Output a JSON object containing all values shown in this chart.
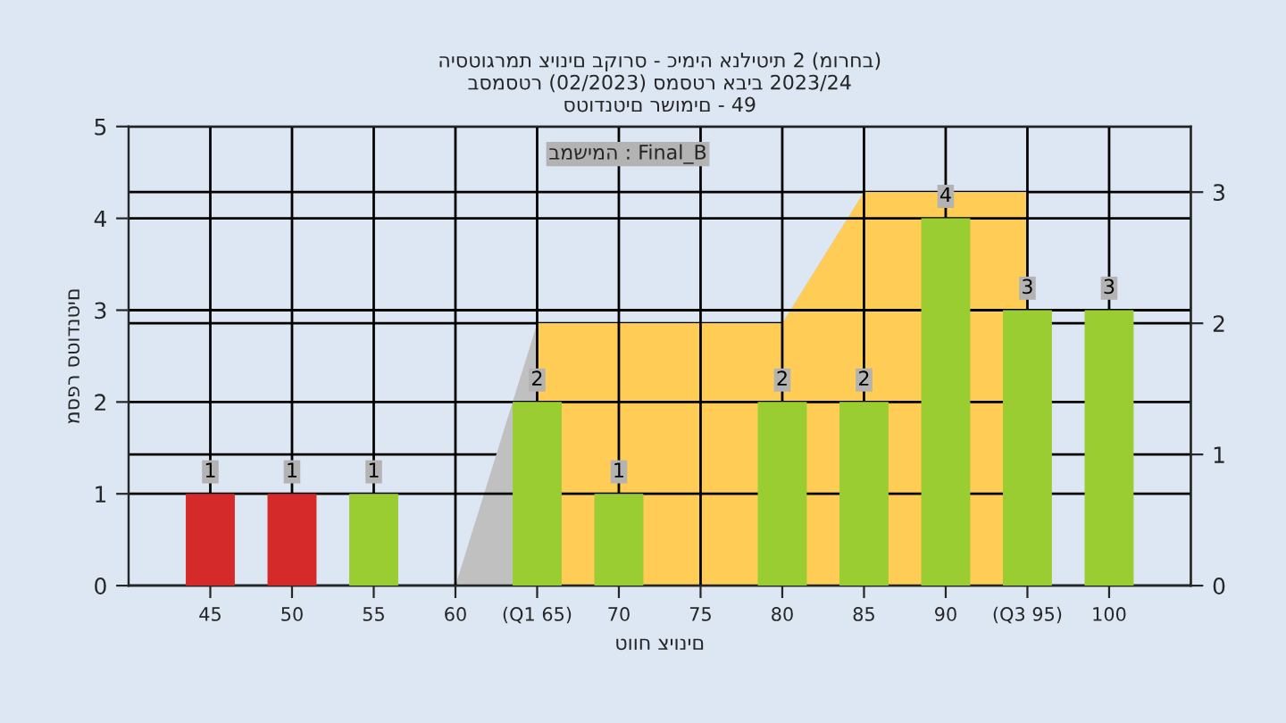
{
  "chart_data": {
    "type": "bar",
    "title": "היסטוגרמת ציונים בקורס - כימיה אנליטית 2 (מורחב)\nבסמסטר (02/2023) סמסטר אביב 2023/24\nסטודנטים רשומים - 49",
    "xlabel": "טווח ציונים",
    "ylabel": "מספר סטודנטים",
    "annotations": [
      "במשימה : Final_B"
    ],
    "series": [
      {
        "type": "area",
        "axis": "y2",
        "color": "#c0c0c0",
        "x": [
          60,
          65,
          80,
          85,
          95
        ],
        "values": [
          0,
          2,
          2,
          3,
          3
        ]
      },
      {
        "type": "area",
        "axis": "y2",
        "color": "#ffcc55",
        "x": [
          65,
          80,
          85,
          95
        ],
        "values": [
          2,
          2,
          3,
          3
        ]
      },
      {
        "x": [
          45,
          50,
          55,
          65,
          70,
          80,
          85,
          90,
          95,
          100
        ],
        "values": [
          1,
          1,
          1,
          2,
          1,
          2,
          2,
          4,
          3,
          3
        ],
        "value_labels": [
          "1",
          "1",
          "1",
          "2",
          "1",
          "2",
          "2",
          "4",
          "3",
          "3"
        ],
        "colors": [
          "#d42a2a",
          "#d42a2a",
          "#9acd32",
          "#9acd32",
          "#9acd32",
          "#9acd32",
          "#9acd32",
          "#9acd32",
          "#9acd32",
          "#9acd32"
        ]
      }
    ],
    "xlim": [
      40,
      105
    ],
    "xticks": [
      45,
      50,
      55,
      60,
      {
        "value": 65,
        "label": "(Q1 65)"
      },
      70,
      75,
      80,
      85,
      90,
      {
        "value": 95,
        "label": "(Q3 95)"
      },
      100
    ],
    "ylim": [
      0,
      5
    ],
    "yticks": [
      0,
      1,
      2,
      3,
      4,
      5
    ],
    "y2lim": [
      0,
      3.5
    ],
    "y2ticks": [
      0,
      1,
      2,
      3
    ],
    "grid": true,
    "legend": false
  }
}
